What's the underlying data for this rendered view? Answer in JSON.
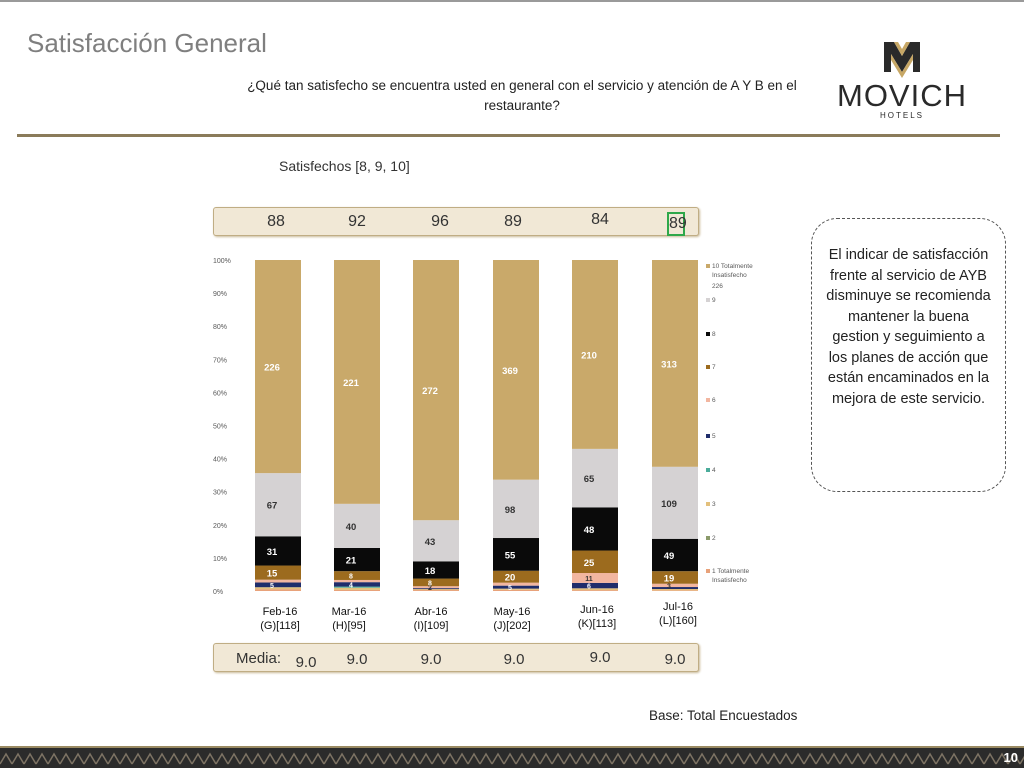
{
  "header": {
    "title": "Satisfacción General",
    "question": "¿Qué tan satisfecho se encuentra usted en general con el servicio y atención de A Y B en el restaurante?",
    "logo_text": "MOVICH",
    "logo_subtext": "HOTELS"
  },
  "subtitle": "Satisfechos [8, 9, 10]",
  "satisfied_values": [
    "88",
    "92",
    "96",
    "89",
    "84",
    "89"
  ],
  "media_label": "Media:",
  "media_values": [
    "9.0",
    "9.0",
    "9.0",
    "9.0",
    "9.0",
    "9.0"
  ],
  "periods": [
    {
      "month": "Feb-16",
      "base": "(G)[118]"
    },
    {
      "month": "Mar-16",
      "base": "(H)[95]"
    },
    {
      "month": "Abr-16",
      "base": "(I)[109]"
    },
    {
      "month": "May-16",
      "base": "(J)[202]"
    },
    {
      "month": "Jun-16",
      "base": "(K)[113]"
    },
    {
      "month": "Jul-16",
      "base": "(L)[160]"
    }
  ],
  "callout": "El indicar de satisfacción frente al servicio de AYB disminuye se recomienda mantener la buena gestion y seguimiento a los planes de acción que están encaminados en la mejora de este servicio.",
  "base_note": "Base: Total Encuestados",
  "page_number": "10",
  "chart_data": {
    "type": "bar",
    "stacked": "percent",
    "categories": [
      "Feb-16",
      "Mar-16",
      "Abr-16",
      "May-16",
      "Jun-16",
      "Jul-16"
    ],
    "y_ticks": [
      "0%",
      "10%",
      "20%",
      "30%",
      "40%",
      "50%",
      "60%",
      "70%",
      "80%",
      "90%",
      "100%"
    ],
    "ylim": [
      0,
      100
    ],
    "legend_position": "right",
    "series": [
      {
        "name": "1 Totalmente Insatisfecho",
        "color": "#e8a27a",
        "values": [
          2,
          1,
          1,
          2,
          1,
          1
        ]
      },
      {
        "name": "2",
        "color": "#8b9a6a",
        "values": [
          0,
          0,
          0,
          0,
          0,
          0
        ]
      },
      {
        "name": "3",
        "color": "#e3c07c",
        "values": [
          2,
          2,
          1,
          2,
          2,
          2
        ]
      },
      {
        "name": "4",
        "color": "#4bac9b",
        "values": [
          0,
          1,
          0,
          0,
          0,
          0
        ]
      },
      {
        "name": "5",
        "color": "#1f2d6b",
        "values": [
          5,
          4,
          1,
          5,
          6,
          3
        ]
      },
      {
        "name": "6",
        "color": "#f2b6a0",
        "values": [
          3,
          2,
          2,
          5,
          11,
          5
        ]
      },
      {
        "name": "7",
        "color": "#9c6b1e",
        "values": [
          15,
          8,
          8,
          20,
          25,
          19
        ]
      },
      {
        "name": "8",
        "color": "#0a0a0a",
        "values": [
          31,
          21,
          18,
          55,
          48,
          49
        ]
      },
      {
        "name": "9",
        "color": "#d5d2d3",
        "values": [
          67,
          40,
          43,
          98,
          65,
          109
        ]
      },
      {
        "name": "10 Totalmente Insatisfecho",
        "color": "#c9a96a",
        "values": [
          226,
          221,
          272,
          369,
          210,
          313
        ]
      }
    ],
    "data_labels": [
      [
        "",
        "",
        "",
        "5",
        "",
        "15",
        "31",
        "67",
        "226"
      ],
      [
        "",
        "",
        "",
        "4",
        "",
        "8",
        "21",
        "40",
        "221"
      ],
      [
        "",
        "",
        "",
        "",
        "2",
        "8",
        "18",
        "43",
        "272"
      ],
      [
        "",
        "",
        "",
        "5",
        "",
        "20",
        "55",
        "98",
        "369"
      ],
      [
        "",
        "",
        "",
        "6",
        "11",
        "25",
        "48",
        "65",
        "210"
      ],
      [
        "",
        "",
        "",
        "",
        "3",
        "19",
        "49",
        "109",
        "313"
      ]
    ],
    "legend_extra": "226"
  }
}
